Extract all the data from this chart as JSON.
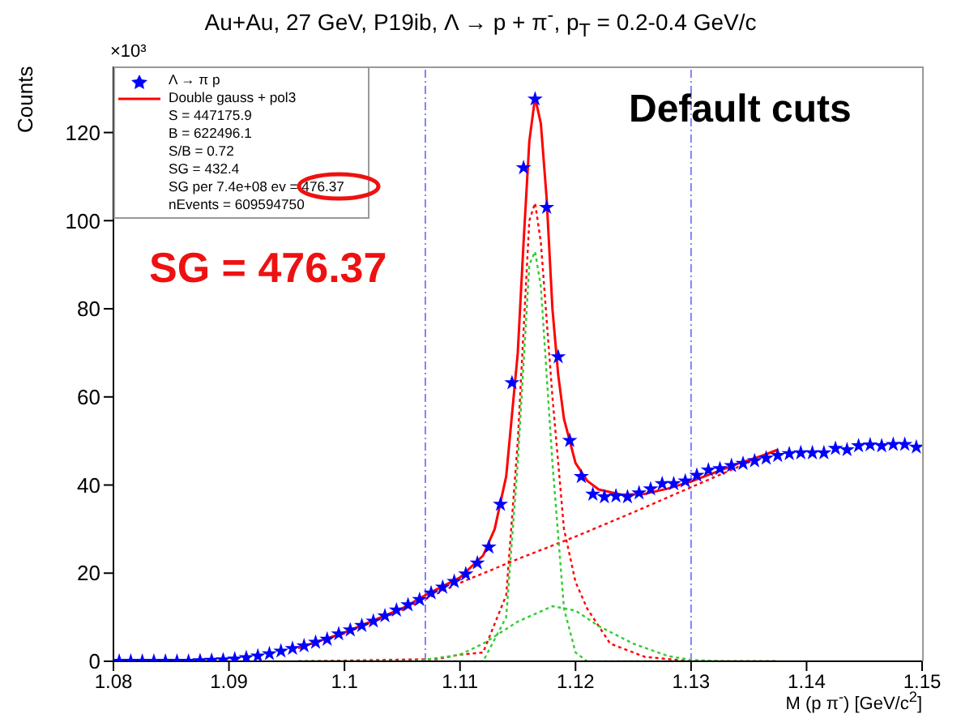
{
  "chart_data": {
    "type": "scatter",
    "title": "Au+Au, 27 GeV, P19ib,  Λ → p + π$^{-}$, p$_{T}$ = 0.2-0.4 GeV/c",
    "xlabel": "M (p π$^{-}$) [GeV/c$^{2}$]",
    "ylabel": "Counts",
    "annotations": [
      "×10³",
      "Default cuts",
      "SG = 476.37",
      "S = 447175.9",
      "B = 622496.1",
      "S/B = 0.72",
      "SG = 432.4",
      "SG per 7.4e+08 ev = 476.37",
      "nEvents = 609594750"
    ],
    "xlim": [
      1.08,
      1.15
    ],
    "xticks": [
      1.08,
      1.09,
      1.1,
      1.11,
      1.12,
      1.13,
      1.14,
      1.15
    ],
    "ylim": [
      0,
      135
    ],
    "yticks": [
      0,
      20,
      40,
      60,
      80,
      100,
      120
    ],
    "legend": "top left",
    "ref_lines": [
      {
        "axis": "x",
        "value": 1.107,
        "color": "#8080ff",
        "line_style": "dashed"
      },
      {
        "axis": "x",
        "value": 1.13,
        "color": "#8080ff",
        "line_style": "dashed"
      }
    ],
    "series": [
      {
        "name": "Λ → π p",
        "marker": "star",
        "color": "#0000ff",
        "x": [
          1.0805,
          1.0815,
          1.0825,
          1.0835,
          1.0845,
          1.0855,
          1.0865,
          1.0875,
          1.0885,
          1.0895,
          1.0905,
          1.0915,
          1.0925,
          1.0935,
          1.0945,
          1.0955,
          1.0965,
          1.0975,
          1.0985,
          1.0995,
          1.1005,
          1.1015,
          1.1025,
          1.1035,
          1.1045,
          1.1055,
          1.1065,
          1.1075,
          1.1085,
          1.1095,
          1.1105,
          1.1115,
          1.1125,
          1.1135,
          1.1145,
          1.1155,
          1.1165,
          1.1175,
          1.1185,
          1.1195,
          1.1205,
          1.1215,
          1.1225,
          1.1235,
          1.1245,
          1.1255,
          1.1265,
          1.1275,
          1.1285,
          1.1295,
          1.1305,
          1.1315,
          1.1325,
          1.1335,
          1.1345,
          1.1355,
          1.1365,
          1.1375,
          1.1385,
          1.1395,
          1.1405,
          1.1415,
          1.1425,
          1.1435,
          1.1445,
          1.1455,
          1.1465,
          1.1475,
          1.1485,
          1.1495
        ],
        "values": [
          0,
          0,
          0,
          0,
          0,
          0,
          0,
          0.1,
          0.2,
          0.3,
          0.5,
          0.8,
          1.2,
          1.7,
          2.3,
          2.9,
          3.5,
          4.3,
          5.0,
          6.2,
          7.1,
          8.1,
          9.1,
          10.3,
          11.6,
          12.8,
          14.0,
          15.5,
          16.8,
          18.1,
          19.8,
          22.3,
          25.9,
          35.6,
          63.2,
          112,
          127.6,
          103,
          69.1,
          50.1,
          41.9,
          37.9,
          37.3,
          37.5,
          37.3,
          38.2,
          39.1,
          40.3,
          40.3,
          40.9,
          42.2,
          43.4,
          43.7,
          44.4,
          44.9,
          45.5,
          46.1,
          46.7,
          47.1,
          47.3,
          47.3,
          47.3,
          48.3,
          48.0,
          48.9,
          49.1,
          48.9,
          49.2,
          49.2,
          48.6
        ]
      },
      {
        "name": "Double gauss + pol3",
        "type": "line",
        "line_style": "solid",
        "color": "#ff0000",
        "x": [
          1.096,
          1.1,
          1.105,
          1.107,
          1.11,
          1.112,
          1.113,
          1.114,
          1.115,
          1.1155,
          1.116,
          1.1165,
          1.117,
          1.1175,
          1.118,
          1.1185,
          1.119,
          1.12,
          1.121,
          1.122,
          1.124,
          1.126,
          1.128,
          1.13,
          1.132,
          1.134,
          1.136,
          1.1375
        ],
        "values": [
          3.0,
          6.5,
          12.0,
          15.0,
          19.0,
          24,
          30,
          42,
          70,
          95,
          118,
          128,
          122,
          105,
          80,
          65,
          55,
          45,
          41,
          39,
          37.8,
          38,
          39.2,
          40.8,
          42.8,
          44.8,
          46.5,
          48
        ]
      },
      {
        "type": "line",
        "line_style": "dotted",
        "color": "#ff0000",
        "x": [
          1.096,
          1.1,
          1.105,
          1.11,
          1.115,
          1.12,
          1.125,
          1.13,
          1.1375
        ],
        "values": [
          3.0,
          6.3,
          11.6,
          17.8,
          23.2,
          28.3,
          33.8,
          39.5,
          48.0
        ]
      },
      {
        "type": "line",
        "line_style": "dotted",
        "color": "#ff0000",
        "x": [
          1.096,
          1.108,
          1.11,
          1.112,
          1.114,
          1.115,
          1.116,
          1.1165,
          1.117,
          1.118,
          1.119,
          1.12,
          1.121,
          1.123,
          1.126,
          1.13,
          1.1375
        ],
        "values": [
          0,
          0.5,
          1.5,
          2,
          15,
          50,
          100,
          104,
          95,
          60,
          30,
          18,
          12,
          4,
          1,
          0,
          0
        ]
      },
      {
        "type": "line",
        "line_style": "dotted",
        "color": "#33cc33",
        "x": [
          1.096,
          1.112,
          1.114,
          1.115,
          1.116,
          1.1165,
          1.117,
          1.118,
          1.119,
          1.12,
          1.121,
          1.1375
        ],
        "values": [
          0,
          0,
          10,
          45,
          90,
          93,
          85,
          45,
          12,
          2,
          0,
          0
        ]
      },
      {
        "type": "line",
        "line_style": "dotted",
        "color": "#33cc33",
        "x": [
          1.096,
          1.106,
          1.11,
          1.112,
          1.115,
          1.118,
          1.12,
          1.122,
          1.125,
          1.128,
          1.13,
          1.133,
          1.1375
        ],
        "values": [
          0,
          0,
          1.5,
          4,
          9,
          12.5,
          11.5,
          8,
          4,
          1.2,
          0.3,
          0,
          0
        ]
      }
    ]
  }
}
